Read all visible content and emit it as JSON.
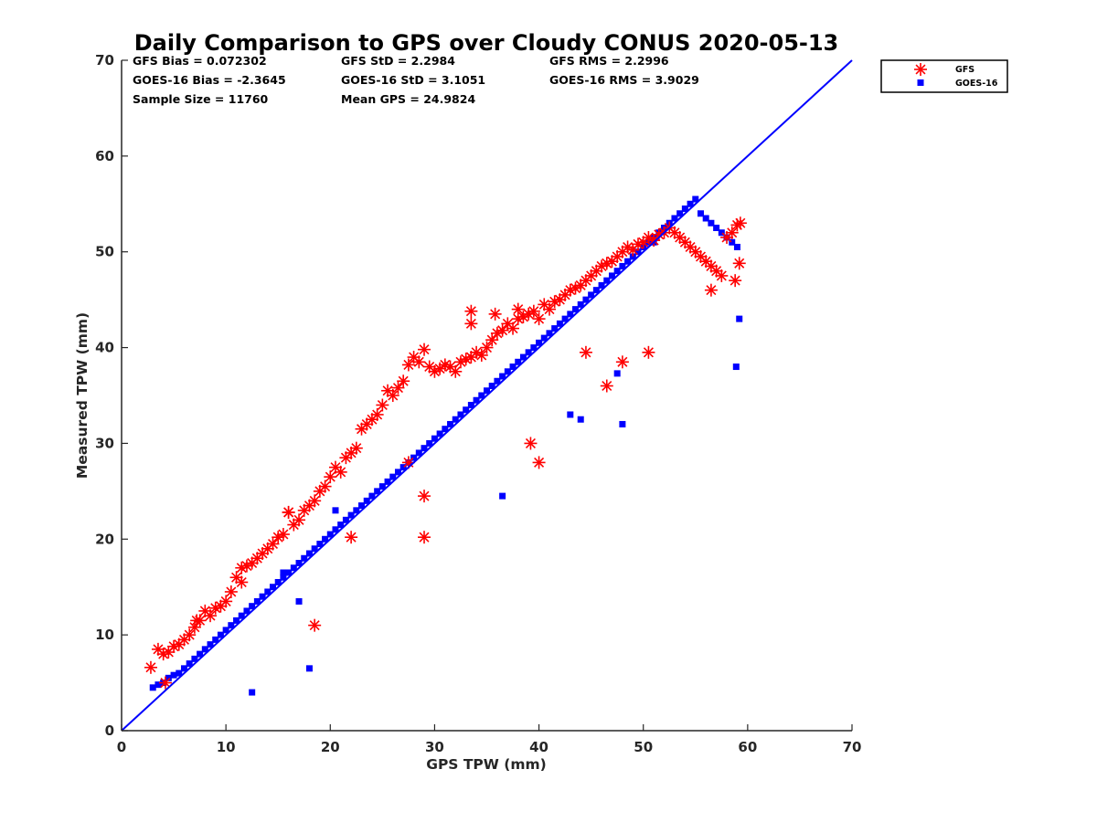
{
  "chart_data": {
    "type": "scatter",
    "title": "Daily Comparison to GPS over Cloudy CONUS 2020-05-13",
    "xlabel": "GPS TPW (mm)",
    "ylabel": "Measured TPW (mm)",
    "xlim": [
      0,
      70
    ],
    "ylim": [
      0,
      70
    ],
    "xticks": [
      "0",
      "10",
      "20",
      "30",
      "40",
      "50",
      "60",
      "70"
    ],
    "yticks": [
      "0",
      "10",
      "20",
      "30",
      "40",
      "50",
      "60",
      "70"
    ],
    "grid": false,
    "legend_position": "outside-top-right",
    "stats": {
      "gfs_bias": "GFS Bias = 0.072302",
      "gfs_std": "GFS StD = 2.2984",
      "gfs_rms": "GFS RMS = 2.2996",
      "goes_bias": "GOES-16 Bias = -2.3645",
      "goes_std": "GOES-16 StD = 3.1051",
      "goes_rms": "GOES-16 RMS = 3.9029",
      "sample_size": "Sample Size = 11760",
      "mean_gps": "Mean GPS = 24.9824"
    },
    "reference_line": {
      "x": [
        0,
        70
      ],
      "y": [
        0,
        70
      ],
      "color": "#0000ff"
    },
    "series": [
      {
        "name": "GFS",
        "marker": "asterisk",
        "color": "#ff0000",
        "x": [
          2.8,
          3.5,
          4.0,
          4.5,
          5.0,
          5.5,
          6.0,
          6.5,
          7.0,
          7.5,
          8.0,
          8.5,
          9.0,
          9.5,
          10.0,
          10.5,
          11.0,
          11.5,
          12.0,
          12.5,
          13.0,
          13.5,
          14.0,
          14.5,
          15.0,
          15.5,
          16.0,
          16.5,
          17.0,
          17.5,
          18.0,
          18.5,
          19.0,
          19.5,
          20.0,
          20.5,
          21.0,
          21.5,
          22.0,
          22.5,
          23.0,
          23.5,
          24.0,
          24.5,
          25.0,
          25.5,
          26.0,
          26.5,
          27.0,
          27.5,
          28.0,
          28.5,
          29.0,
          29.5,
          30.0,
          30.5,
          31.0,
          31.5,
          32.0,
          32.5,
          33.0,
          33.5,
          34.0,
          34.5,
          35.0,
          35.5,
          36.0,
          36.5,
          37.0,
          37.5,
          38.0,
          38.5,
          39.0,
          39.5,
          40.0,
          40.5,
          41.0,
          41.5,
          42.0,
          42.5,
          43.0,
          43.5,
          44.0,
          44.5,
          45.0,
          45.5,
          46.0,
          46.5,
          47.0,
          47.5,
          48.0,
          48.5,
          49.0,
          49.5,
          50.0,
          50.5,
          51.0,
          51.5,
          52.0,
          52.5,
          53.0,
          53.5,
          54.0,
          54.5,
          55.0,
          55.5,
          56.0,
          56.5,
          57.0,
          57.5,
          58.0,
          58.5,
          59.0,
          59.3,
          4.2,
          7.2,
          11.5,
          16.0,
          18.5,
          22.0,
          27.5,
          29.0,
          33.5,
          33.5,
          35.8,
          38.0,
          40.0,
          39.2,
          44.5,
          46.5,
          48.0,
          50.5,
          56.5,
          59.2,
          58.8,
          29.0
        ],
        "y": [
          6.6,
          8.5,
          8.0,
          8.2,
          8.8,
          9.0,
          9.5,
          10.0,
          10.8,
          11.5,
          12.5,
          12.0,
          12.8,
          13.0,
          13.5,
          14.5,
          16.0,
          15.5,
          17.2,
          17.5,
          18.0,
          18.5,
          19.0,
          19.5,
          20.2,
          20.5,
          22.8,
          21.5,
          22.0,
          23.0,
          23.5,
          24.0,
          25.0,
          25.5,
          26.5,
          27.5,
          27.0,
          28.5,
          29.0,
          29.5,
          31.5,
          32.0,
          32.5,
          33.0,
          34.0,
          35.5,
          35.0,
          35.8,
          36.5,
          38.2,
          39.0,
          38.5,
          39.8,
          38.0,
          37.5,
          37.8,
          38.2,
          38.0,
          37.5,
          38.5,
          38.8,
          39.0,
          39.5,
          39.2,
          40.0,
          40.8,
          41.5,
          41.8,
          42.5,
          42.0,
          43.0,
          43.2,
          43.5,
          43.8,
          43.0,
          44.5,
          44.0,
          44.8,
          45.0,
          45.5,
          46.0,
          46.2,
          46.5,
          47.0,
          47.5,
          48.0,
          48.5,
          48.8,
          49.0,
          49.5,
          50.0,
          50.5,
          50.2,
          50.8,
          51.0,
          51.5,
          51.2,
          51.8,
          52.0,
          52.5,
          52.0,
          51.5,
          51.0,
          50.5,
          50.0,
          49.5,
          49.0,
          48.5,
          48.0,
          47.5,
          51.5,
          52.0,
          52.8,
          53.0,
          5.0,
          11.5,
          17.0,
          22.8,
          11.0,
          20.2,
          28.0,
          20.2,
          43.8,
          42.5,
          43.5,
          44.0,
          28.0,
          30.0,
          39.5,
          36.0,
          38.5,
          39.5,
          46.0,
          48.8,
          47.0,
          24.5
        ]
      },
      {
        "name": "GOES-16",
        "marker": "square",
        "color": "#0000ff",
        "x": [
          3.0,
          3.5,
          4.0,
          4.5,
          5.0,
          5.5,
          6.0,
          6.5,
          7.0,
          7.5,
          8.0,
          8.5,
          9.0,
          9.5,
          10.0,
          10.5,
          11.0,
          11.5,
          12.0,
          12.5,
          13.0,
          13.5,
          14.0,
          14.5,
          15.0,
          15.5,
          16.0,
          16.5,
          17.0,
          17.5,
          18.0,
          18.5,
          19.0,
          19.5,
          20.0,
          20.5,
          21.0,
          21.5,
          22.0,
          22.5,
          23.0,
          23.5,
          24.0,
          24.5,
          25.0,
          25.5,
          26.0,
          26.5,
          27.0,
          27.5,
          28.0,
          28.5,
          29.0,
          29.5,
          30.0,
          30.5,
          31.0,
          31.5,
          32.0,
          32.5,
          33.0,
          33.5,
          34.0,
          34.5,
          35.0,
          35.5,
          36.0,
          36.5,
          37.0,
          37.5,
          38.0,
          38.5,
          39.0,
          39.5,
          40.0,
          40.5,
          41.0,
          41.5,
          42.0,
          42.5,
          43.0,
          43.5,
          44.0,
          44.5,
          45.0,
          45.5,
          46.0,
          46.5,
          47.0,
          47.5,
          48.0,
          48.5,
          49.0,
          49.5,
          50.0,
          50.5,
          51.0,
          51.5,
          52.0,
          52.5,
          53.0,
          53.5,
          54.0,
          54.5,
          55.0,
          55.5,
          56.0,
          56.5,
          57.0,
          57.5,
          58.0,
          58.5,
          59.0,
          59.2,
          58.9,
          51.0,
          47.5,
          48.0,
          44.0,
          43.0,
          18.0,
          36.5,
          12.5,
          15.5,
          20.5,
          17.0
        ],
        "y": [
          4.5,
          4.8,
          5.0,
          5.5,
          5.8,
          6.0,
          6.5,
          7.0,
          7.5,
          8.0,
          8.5,
          9.0,
          9.5,
          10.0,
          10.5,
          11.0,
          11.5,
          12.0,
          12.5,
          13.0,
          13.5,
          14.0,
          14.5,
          15.0,
          15.5,
          16.0,
          16.5,
          17.0,
          17.5,
          18.0,
          18.5,
          19.0,
          19.5,
          20.0,
          20.5,
          21.0,
          21.5,
          22.0,
          22.5,
          23.0,
          23.5,
          24.0,
          24.5,
          25.0,
          25.5,
          26.0,
          26.5,
          27.0,
          27.5,
          28.0,
          28.5,
          29.0,
          29.5,
          30.0,
          30.5,
          31.0,
          31.5,
          32.0,
          32.5,
          33.0,
          33.5,
          34.0,
          34.5,
          35.0,
          35.5,
          36.0,
          36.5,
          37.0,
          37.5,
          38.0,
          38.5,
          39.0,
          39.5,
          40.0,
          40.5,
          41.0,
          41.5,
          42.0,
          42.5,
          43.0,
          43.5,
          44.0,
          44.5,
          45.0,
          45.5,
          46.0,
          46.5,
          47.0,
          47.5,
          48.0,
          48.5,
          49.0,
          49.5,
          50.0,
          50.5,
          51.0,
          51.5,
          52.0,
          52.5,
          53.0,
          53.5,
          54.0,
          54.5,
          55.0,
          55.5,
          54.0,
          53.5,
          53.0,
          52.5,
          52.0,
          51.5,
          51.0,
          50.5,
          43.0,
          38.0,
          51.0,
          37.3,
          32.0,
          32.5,
          33.0,
          6.5,
          24.5,
          4.0,
          16.5,
          23.0,
          13.5
        ]
      }
    ]
  }
}
